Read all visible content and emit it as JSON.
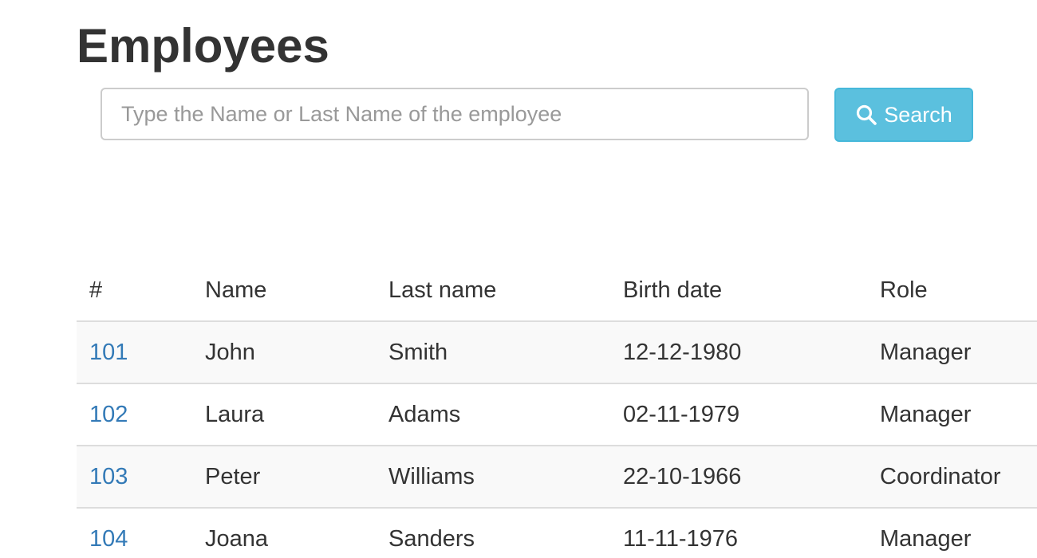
{
  "page": {
    "title": "Employees"
  },
  "search": {
    "placeholder": "Type the Name or Last Name of the employee",
    "value": "",
    "button_label": "Search",
    "button_icon": "search-icon"
  },
  "table": {
    "headers": [
      "#",
      "Name",
      "Last name",
      "Birth date",
      "Role"
    ],
    "rows": [
      {
        "id": "101",
        "name": "John",
        "last_name": "Smith",
        "birth_date": "12-12-1980",
        "role": "Manager"
      },
      {
        "id": "102",
        "name": "Laura",
        "last_name": "Adams",
        "birth_date": "02-11-1979",
        "role": "Manager"
      },
      {
        "id": "103",
        "name": "Peter",
        "last_name": "Williams",
        "birth_date": "22-10-1966",
        "role": "Coordinator"
      },
      {
        "id": "104",
        "name": "Joana",
        "last_name": "Sanders",
        "birth_date": "11-11-1976",
        "role": "Manager"
      }
    ]
  },
  "colors": {
    "accent": "#5bc0de",
    "link": "#337ab7",
    "stripe": "#f9f9f9"
  }
}
